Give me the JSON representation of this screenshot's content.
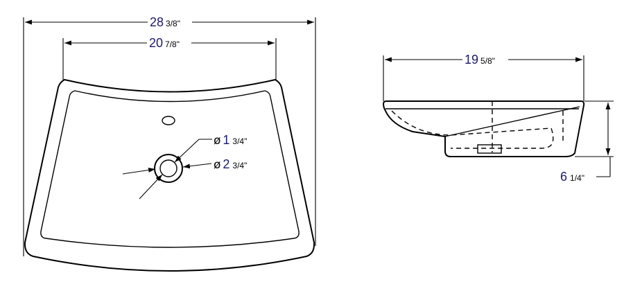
{
  "dimensions": {
    "overall_width": {
      "whole": "28",
      "fraction": "3/8\""
    },
    "basin_width": {
      "whole": "20",
      "fraction": "7/8\""
    },
    "depth": {
      "whole": "19",
      "fraction": "5/8\""
    },
    "height": {
      "whole": "6",
      "fraction": "1/4\""
    },
    "faucet_hole": {
      "symbol": "ø",
      "whole": "1",
      "fraction": "3/4\""
    },
    "drain_hole": {
      "symbol": "ø",
      "whole": "2",
      "fraction": "3/4\""
    }
  }
}
